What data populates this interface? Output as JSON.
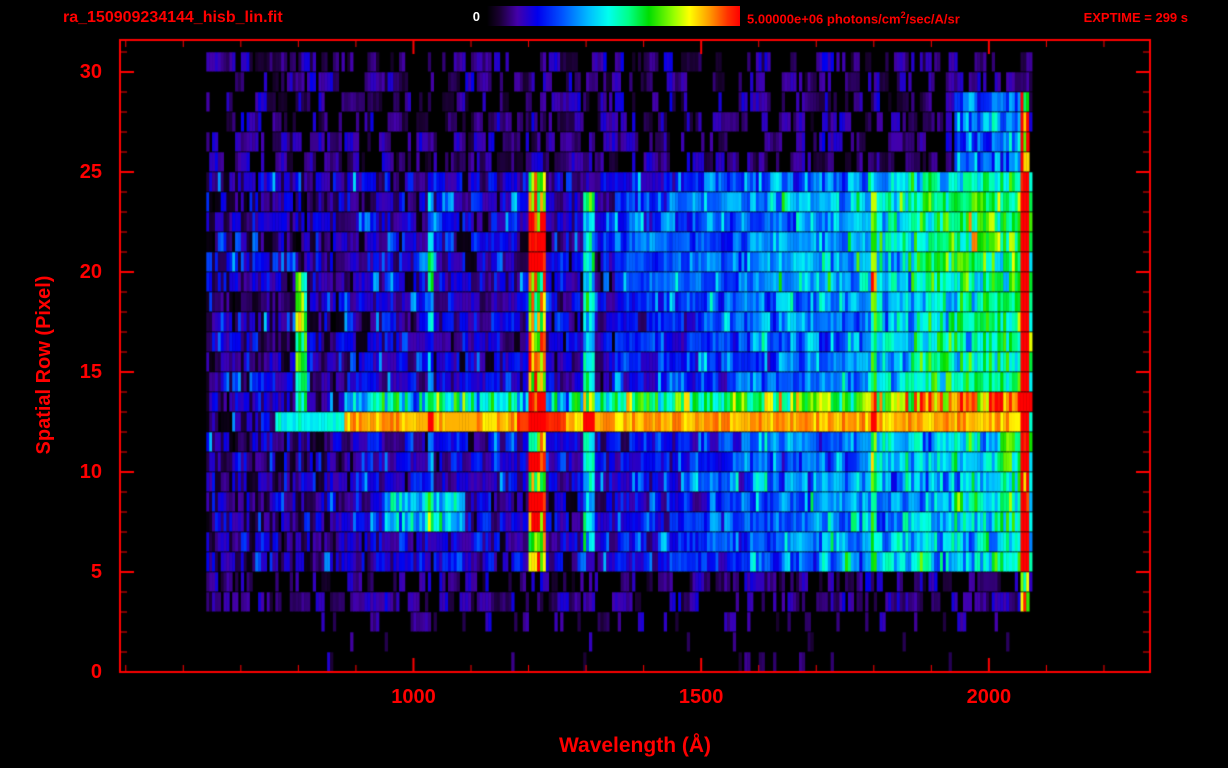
{
  "header": {
    "title": "ra_150909234144_hisb_lin.fit",
    "exptime": "EXPTIME = 299 s",
    "colorbar": {
      "min_label": "0",
      "max_label_pre": "5.00000e+06 photons/cm",
      "max_label_sup": "2",
      "max_label_post": "/sec/A/sr"
    }
  },
  "axes": {
    "x_label": "Wavelength (Å)",
    "y_label": "Spatial Row (Pixel)"
  },
  "colors": {
    "accent": "#ff0000",
    "background": "#000000",
    "min_label_color": "#ffffff"
  },
  "chart_data": {
    "type": "heatmap",
    "title": "ra_150909234144_hisb_lin.fit",
    "xlabel": "Wavelength (Å)",
    "ylabel": "Spatial Row (Pixel)",
    "xlim": [
      490,
      2280
    ],
    "ylim": [
      0,
      31.6
    ],
    "xticks_major": [
      1000,
      1500,
      2000
    ],
    "xticks_minor_step": 100,
    "yticks_major": [
      0,
      5,
      10,
      15,
      20,
      25,
      30
    ],
    "yticks_minor_step": 1,
    "colorbar_range_min": 0,
    "colorbar_range_max": 5000000,
    "colorbar_units": "photons/cm^2/sec/A/sr",
    "exposure_time_s": 299,
    "grid": false,
    "colormap_stops": [
      [
        0.0,
        "#000000"
      ],
      [
        0.05,
        "#1a0033"
      ],
      [
        0.12,
        "#4400aa"
      ],
      [
        0.2,
        "#0000ee"
      ],
      [
        0.3,
        "#0055ff"
      ],
      [
        0.4,
        "#00bbff"
      ],
      [
        0.48,
        "#00ffee"
      ],
      [
        0.56,
        "#00ff88"
      ],
      [
        0.64,
        "#00dd00"
      ],
      [
        0.74,
        "#99ff00"
      ],
      [
        0.8,
        "#ffff00"
      ],
      [
        0.88,
        "#ff9900"
      ],
      [
        0.95,
        "#ff3300"
      ],
      [
        1.0,
        "#ff0000"
      ]
    ],
    "data_extent": {
      "wavelength": [
        640,
        2075
      ],
      "rows": [
        0,
        31
      ]
    },
    "features": {
      "rows_active": [
        5,
        24
      ],
      "bright_row": {
        "row": 12,
        "wavelength_start": 880,
        "wavelength_end": 2060,
        "intensity": 0.8,
        "green_lead_start": 760,
        "halo_intensity": 0.38
      },
      "emission_lines": [
        {
          "wavelength": 1215,
          "width": 26,
          "rows": [
            5,
            24
          ],
          "intensity": 0.62,
          "hot_rows": [
            7,
            8,
            10,
            20,
            21,
            22
          ]
        },
        {
          "wavelength": 1305,
          "width": 16,
          "rows": [
            6,
            23
          ],
          "intensity": 0.33
        },
        {
          "wavelength": 1030,
          "width": 12,
          "rows": [
            7,
            23
          ],
          "intensity": 0.22
        },
        {
          "wavelength": 1800,
          "width": 14,
          "rows": [
            5,
            23
          ],
          "intensity": 0.28
        },
        {
          "wavelength": 2062,
          "width": 14,
          "rows": [
            3,
            28
          ],
          "intensity": 0.8
        }
      ],
      "arc": {
        "wavelength": 805,
        "width": 18,
        "rows": [
          13,
          19
        ],
        "intensity": 0.5
      },
      "cyan_streak": {
        "rows": [
          7,
          8
        ],
        "wavelength_start": 950,
        "wavelength_end": 1090,
        "intensity": 0.3
      },
      "continuum": {
        "wavelength_start": 1350,
        "wavelength_end": 2055,
        "intensity_max": 0.3,
        "rows_boost": [
          19,
          23
        ]
      },
      "top_right_patch": {
        "rows": [
          25,
          28
        ],
        "wavelength_start": 1940,
        "wavelength_end": 2060,
        "intensity": 0.28
      }
    }
  }
}
